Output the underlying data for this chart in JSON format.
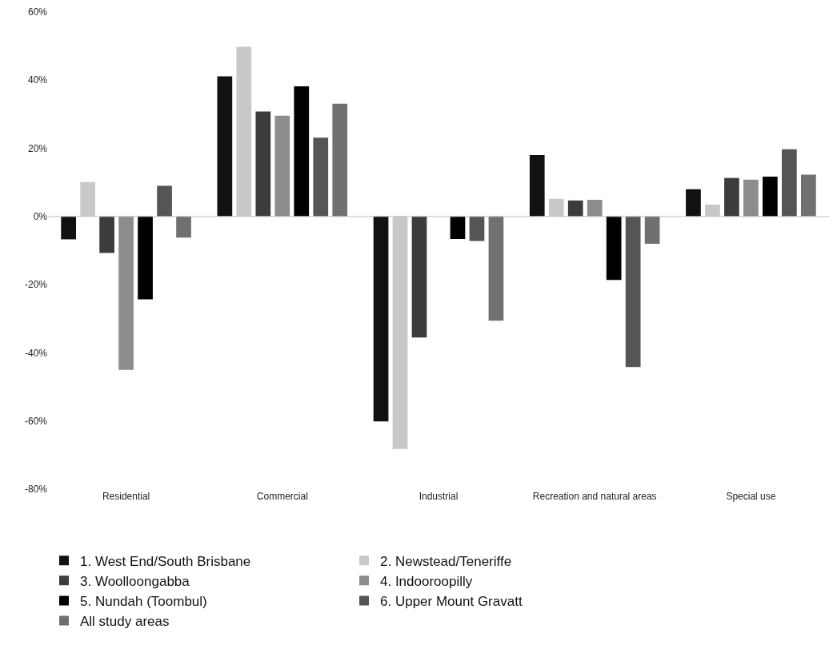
{
  "chart_data": {
    "type": "bar",
    "categories": [
      "Residential",
      "Commercial",
      "Industrial",
      "Recreation and natural areas",
      "Special use"
    ],
    "series": [
      {
        "name": "1. West End/South Brisbane",
        "color": "#111111",
        "values": [
          -6.7,
          41.1,
          -60.1,
          18.0,
          8.0
        ]
      },
      {
        "name": "2. Newstead/Teneriffe",
        "color": "#c8c8c8",
        "values": [
          10.1,
          49.8,
          -68.2,
          5.2,
          3.5
        ]
      },
      {
        "name": "3. Woolloongabba",
        "color": "#3c3c3c",
        "values": [
          -10.7,
          30.8,
          -35.5,
          4.7,
          11.3
        ]
      },
      {
        "name": "4. Indooroopilly",
        "color": "#8c8c8c",
        "values": [
          -45.0,
          29.6,
          0,
          4.9,
          10.8
        ]
      },
      {
        "name": "5. Nundah (Toombul)",
        "color": "#000000",
        "values": [
          -24.3,
          38.2,
          -6.6,
          -18.6,
          11.7
        ]
      },
      {
        "name": "6. Upper Mount Gravatt",
        "color": "#555555",
        "values": [
          9.0,
          23.1,
          -7.2,
          -44.2,
          19.7
        ]
      },
      {
        "name": "All study areas",
        "color": "#707070",
        "values": [
          -6.2,
          33.1,
          -30.6,
          -8.0,
          12.3
        ]
      }
    ],
    "ylim": [
      -80,
      60
    ],
    "yticks": [
      {
        "value": -80,
        "label": "-80%"
      },
      {
        "value": -60,
        "label": "-60%"
      },
      {
        "value": -40,
        "label": "-40%"
      },
      {
        "value": -20,
        "label": "-20%"
      },
      {
        "value": 0,
        "label": "0%"
      },
      {
        "value": 20,
        "label": "20%"
      },
      {
        "value": 40,
        "label": "40%"
      },
      {
        "value": 60,
        "label": "60%"
      }
    ],
    "grid": false,
    "ref_lines": [
      {
        "axis": "y",
        "value": 0,
        "color": "#bfbfbf"
      }
    ],
    "legend": "bottom"
  }
}
